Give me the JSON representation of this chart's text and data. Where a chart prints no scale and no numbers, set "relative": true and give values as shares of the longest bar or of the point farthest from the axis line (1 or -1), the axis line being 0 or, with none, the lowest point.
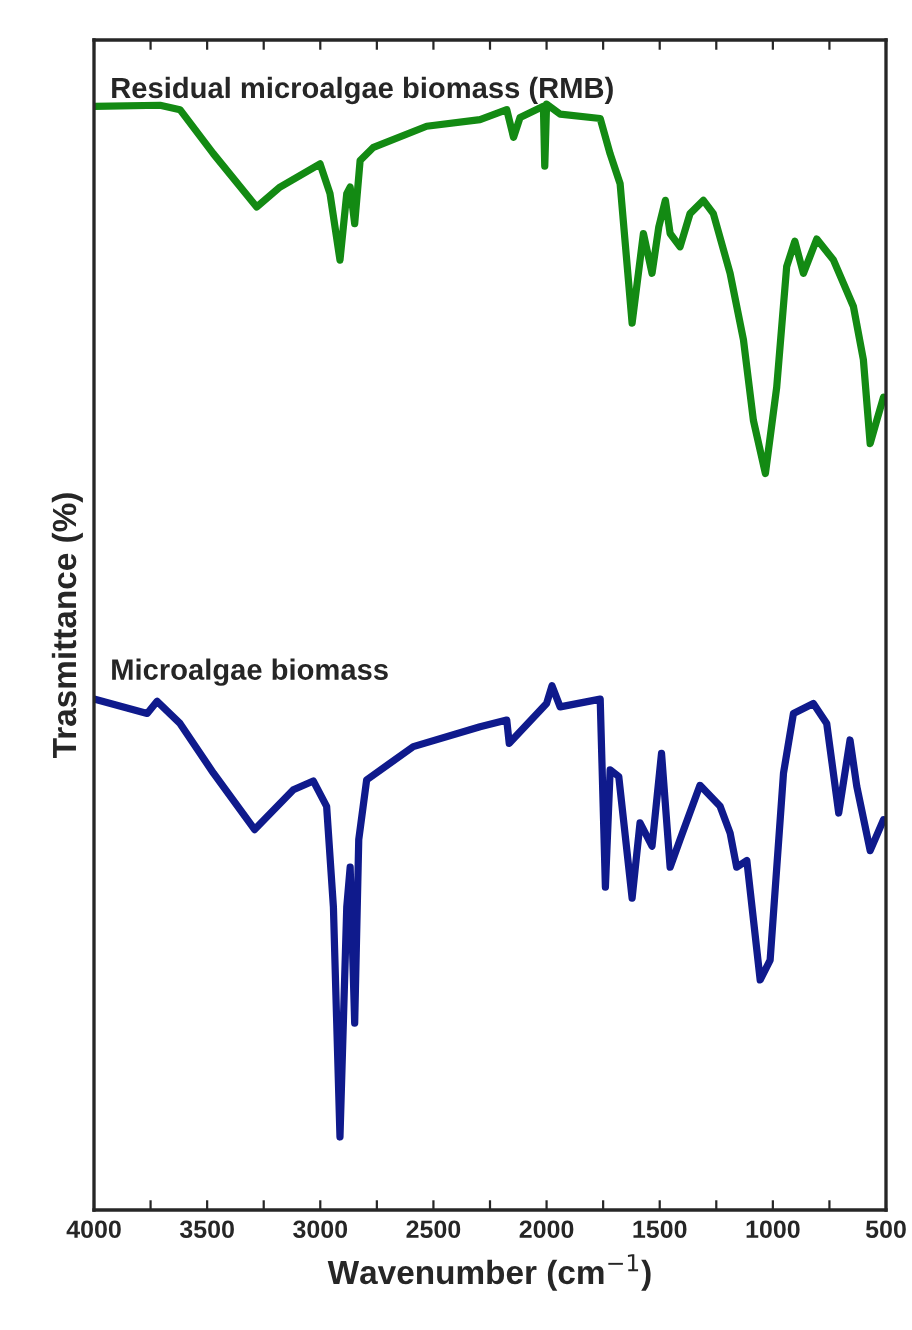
{
  "chart_data": {
    "type": "line",
    "relative": true,
    "xlabel": "Wavenumber (cm$^{−1}$)",
    "ylabel": "Trasmittance (%)",
    "xlim": [
      4000,
      500
    ],
    "xticks": [
      4000,
      {
        "value": 3750,
        "label": null
      },
      3500,
      {
        "value": 3250,
        "label": null
      },
      3000,
      {
        "value": 2750,
        "label": null
      },
      2500,
      {
        "value": 2250,
        "label": null
      },
      2000,
      {
        "value": 1750,
        "label": null
      },
      1500,
      {
        "value": 1250,
        "label": null
      },
      1000,
      {
        "value": 750,
        "label": null
      },
      500
    ],
    "grid": false,
    "legend": false,
    "marker": "none",
    "line_style": "solid",
    "series": [
      {
        "name": "Residual microalgae biomass (RMB)",
        "color": "#138a13",
        "x": [
          4000,
          3708,
          3620,
          3472,
          3281,
          3178,
          3001,
          2957,
          2913,
          2883,
          2868,
          2848,
          2824,
          2765,
          2530,
          2294,
          2176,
          2146,
          2117,
          2014,
          2008,
          2000,
          1940,
          1763,
          1719,
          1675,
          1622,
          1572,
          1534,
          1504,
          1475,
          1454,
          1410,
          1366,
          1307,
          1263,
          1189,
          1130,
          1086,
          1033,
          983,
          939,
          903,
          865,
          806,
          732,
          644,
          600,
          570,
          541,
          511
        ],
        "values": [
          0.998,
          0.999,
          0.995,
          0.955,
          0.907,
          0.925,
          0.946,
          0.919,
          0.859,
          0.919,
          0.925,
          0.892,
          0.949,
          0.961,
          0.98,
          0.986,
          0.995,
          0.97,
          0.988,
          0.998,
          0.944,
          1.0,
          0.991,
          0.987,
          0.955,
          0.928,
          0.802,
          0.883,
          0.847,
          0.889,
          0.913,
          0.883,
          0.871,
          0.901,
          0.913,
          0.901,
          0.847,
          0.787,
          0.714,
          0.666,
          0.744,
          0.853,
          0.876,
          0.847,
          0.878,
          0.859,
          0.817,
          0.769,
          0.693,
          0.714,
          0.735
        ]
      },
      {
        "name": "Microalgae biomass",
        "color": "#0f1a8c",
        "x": [
          4000,
          3765,
          3721,
          3620,
          3472,
          3290,
          3119,
          3031,
          2972,
          2942,
          2913,
          2883,
          2868,
          2848,
          2830,
          2795,
          2589,
          2294,
          2176,
          2165,
          2000,
          1976,
          1940,
          1763,
          1740,
          1719,
          1681,
          1622,
          1587,
          1534,
          1492,
          1454,
          1410,
          1322,
          1233,
          1189,
          1160,
          1115,
          1056,
          1012,
          953,
          909,
          821,
          762,
          709,
          659,
          629,
          570,
          511
        ],
        "values": [
          0.462,
          0.449,
          0.46,
          0.44,
          0.395,
          0.344,
          0.38,
          0.388,
          0.365,
          0.274,
          0.066,
          0.274,
          0.31,
          0.169,
          0.335,
          0.389,
          0.419,
          0.437,
          0.443,
          0.422,
          0.458,
          0.474,
          0.455,
          0.462,
          0.292,
          0.398,
          0.392,
          0.282,
          0.35,
          0.329,
          0.413,
          0.31,
          0.335,
          0.384,
          0.365,
          0.341,
          0.31,
          0.316,
          0.208,
          0.226,
          0.395,
          0.449,
          0.458,
          0.44,
          0.359,
          0.425,
          0.383,
          0.325,
          0.353
        ]
      }
    ]
  }
}
